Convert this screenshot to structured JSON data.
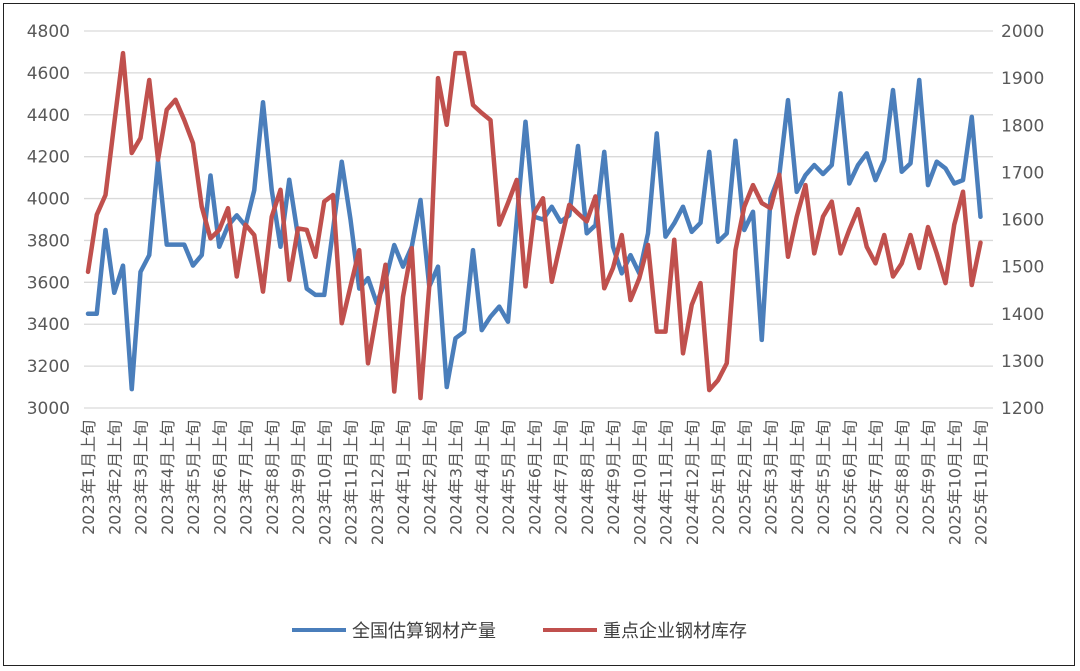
{
  "chart_data": {
    "type": "line",
    "title": "",
    "x_tick_labels": [
      "2023年1月上旬",
      "2023年2月上旬",
      "2023年3月上旬",
      "2023年4月上旬",
      "2023年5月上旬",
      "2023年6月上旬",
      "2023年7月上旬",
      "2023年8月上旬",
      "2023年9月上旬",
      "2023年10月上旬",
      "2023年11月上旬",
      "2023年12月上旬",
      "2024年1月上旬",
      "2024年2月上旬",
      "2024年3月上旬",
      "2024年4月上旬",
      "2024年5月上旬",
      "2024年6月上旬",
      "2024年7月上旬",
      "2024年8月上旬",
      "2024年9月上旬",
      "2024年10月上旬",
      "2024年11月上旬",
      "2024年12月上旬",
      "2025年1月上旬",
      "2025年2月上旬",
      "2025年3月上旬",
      "2025年4月上旬",
      "2025年5月上旬",
      "2025年6月上旬",
      "2025年7月上旬",
      "2025年8月上旬",
      "2025年9月上旬",
      "2025年10月上旬",
      "2025年11月上旬"
    ],
    "y_left": {
      "min": 3000,
      "max": 4800,
      "step": 200,
      "ticks": [
        "3000",
        "3200",
        "3400",
        "3600",
        "3800",
        "4000",
        "4200",
        "4400",
        "4600",
        "4800"
      ]
    },
    "y_right": {
      "min": 1200,
      "max": 2000,
      "step": 100,
      "ticks": [
        "1200",
        "1300",
        "1400",
        "1500",
        "1600",
        "1700",
        "1800",
        "1900",
        "2000"
      ]
    },
    "grid": true,
    "legend_position": "bottom",
    "series": [
      {
        "name": "全国估算钢材产量",
        "axis": "left",
        "color": "#4A7EBB",
        "values": [
          3450,
          3450,
          3850,
          3550,
          3680,
          3090,
          3650,
          3730,
          4180,
          3780,
          3780,
          3780,
          3680,
          3730,
          4110,
          3770,
          3870,
          3920,
          3870,
          4040,
          4460,
          4040,
          3770,
          4090,
          3820,
          3570,
          3540,
          3540,
          3850,
          4176,
          3900,
          3570,
          3620,
          3500,
          3610,
          3778,
          3675,
          3770,
          3993,
          3580,
          3675,
          3100,
          3333,
          3364,
          3754,
          3372,
          3436,
          3484,
          3412,
          3900,
          4367,
          3913,
          3900,
          3961,
          3889,
          3920,
          4251,
          3834,
          3873,
          4223,
          3770,
          3643,
          3730,
          3643,
          3834,
          4311,
          3818,
          3882,
          3961,
          3841,
          3884,
          4223,
          3794,
          3834,
          4276,
          3850,
          3937,
          3325,
          4000,
          4110,
          4470,
          4032,
          4112,
          4160,
          4117,
          4160,
          4502,
          4072,
          4160,
          4216,
          4088,
          4184,
          4518,
          4128,
          4168,
          4566,
          4064,
          4176,
          4144,
          4072,
          4088,
          4390,
          3913
        ]
      },
      {
        "name": "重点企业钢材库存",
        "axis": "right",
        "color": "#C0504D",
        "values": [
          1489,
          1610,
          1652,
          1804,
          1953,
          1741,
          1773,
          1896,
          1727,
          1833,
          1854,
          1811,
          1762,
          1627,
          1560,
          1578,
          1624,
          1479,
          1589,
          1567,
          1447,
          1606,
          1663,
          1472,
          1581,
          1578,
          1521,
          1638,
          1652,
          1380,
          1458,
          1535,
          1295,
          1401,
          1504,
          1235,
          1436,
          1539,
          1221,
          1458,
          1900,
          1801,
          1953,
          1953,
          1843,
          1826,
          1811,
          1589,
          1635,
          1684,
          1458,
          1613,
          1645,
          1468,
          1550,
          1631,
          1613,
          1596,
          1649,
          1454,
          1497,
          1567,
          1429,
          1475,
          1546,
          1362,
          1362,
          1557,
          1316,
          1419,
          1465,
          1238,
          1259,
          1295,
          1535,
          1627,
          1673,
          1635,
          1624,
          1695,
          1521,
          1606,
          1673,
          1528,
          1606,
          1638,
          1528,
          1578,
          1622,
          1542,
          1507,
          1567,
          1479,
          1507,
          1567,
          1497,
          1584,
          1528,
          1465,
          1589,
          1659,
          1461,
          1551
        ]
      }
    ]
  }
}
